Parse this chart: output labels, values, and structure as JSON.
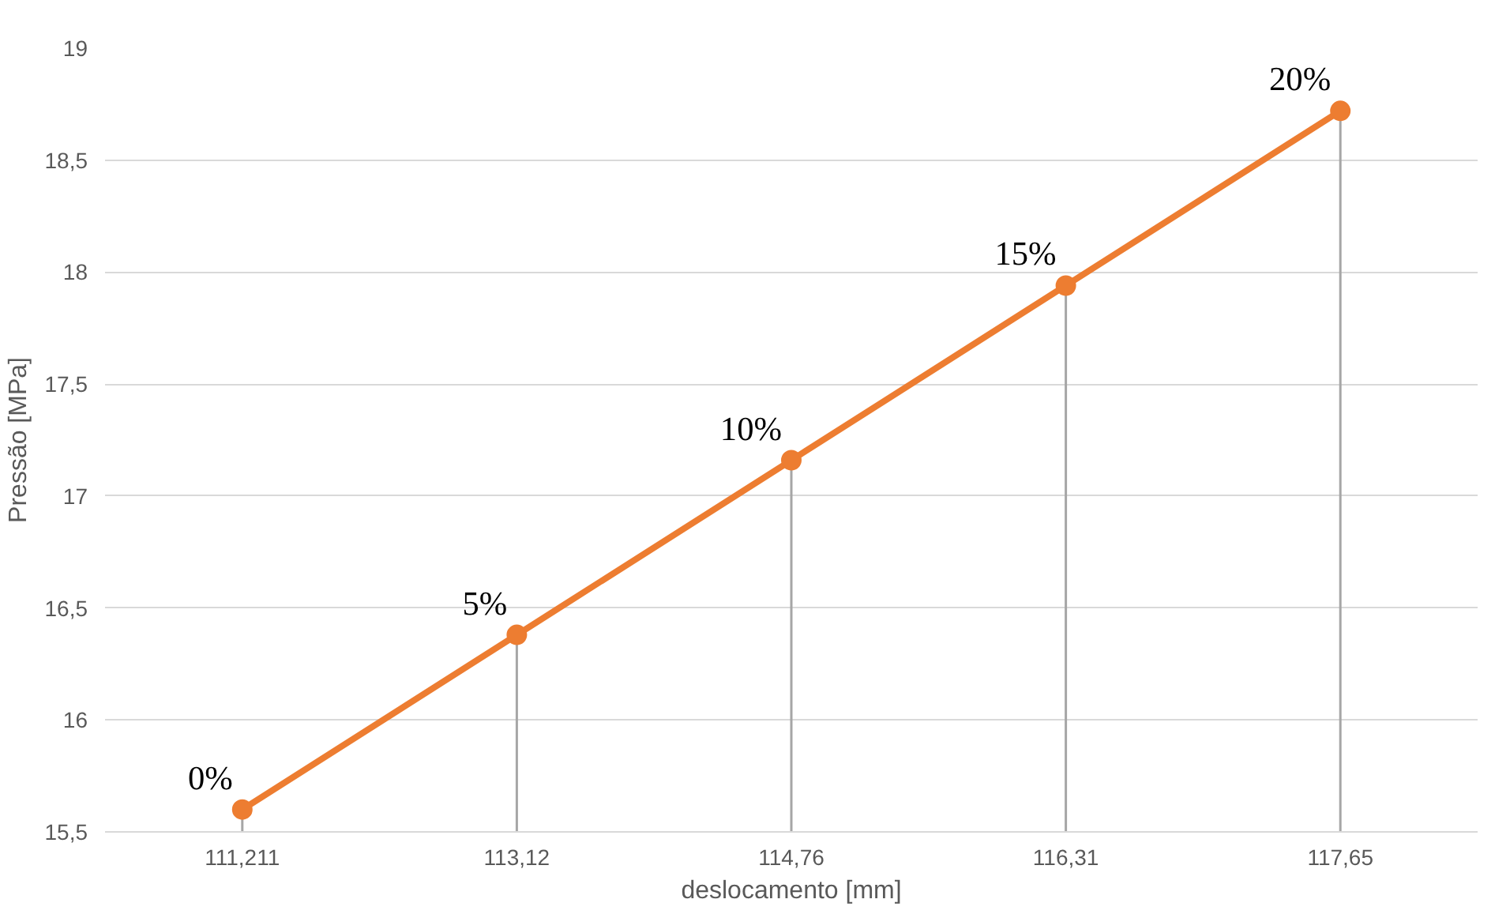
{
  "chart_data": {
    "type": "line",
    "xlabel": "deslocamento [mm]",
    "ylabel": "Pressão [MPa]",
    "categories": [
      "111,211",
      "113,12",
      "114,76",
      "116,31",
      "117,65"
    ],
    "series": [
      {
        "color": "#ed7d31",
        "values": [
          15.6,
          16.38,
          17.16,
          17.94,
          18.72
        ],
        "errors": [
          [
            15.5,
            15.6
          ],
          [
            15.5,
            16.38
          ],
          [
            15.5,
            17.16
          ],
          [
            15.5,
            17.94
          ],
          [
            15.5,
            18.72
          ]
        ]
      }
    ],
    "ylim": [
      15.5,
      19
    ],
    "yticks": [
      {
        "value": 15.5,
        "label": "15,5"
      },
      {
        "value": 16,
        "label": "16"
      },
      {
        "value": 16.5,
        "label": "16,5"
      },
      {
        "value": 17,
        "label": "17"
      },
      {
        "value": 17.5,
        "label": "17,5"
      },
      {
        "value": 18,
        "label": "18"
      },
      {
        "value": 18.5,
        "label": "18,5"
      },
      {
        "value": 19,
        "label": "19"
      }
    ],
    "grid": "y",
    "marker": "circle",
    "line_style": "solid",
    "annotations": [
      {
        "text": "0%",
        "x": "111,211",
        "y": 15.6
      },
      {
        "text": "5%",
        "x": "113,12",
        "y": 16.38
      },
      {
        "text": "10%",
        "x": "114,76",
        "y": 17.16
      },
      {
        "text": "15%",
        "x": "116,31",
        "y": 17.94
      },
      {
        "text": "20%",
        "x": "117,65",
        "y": 18.72
      }
    ]
  }
}
